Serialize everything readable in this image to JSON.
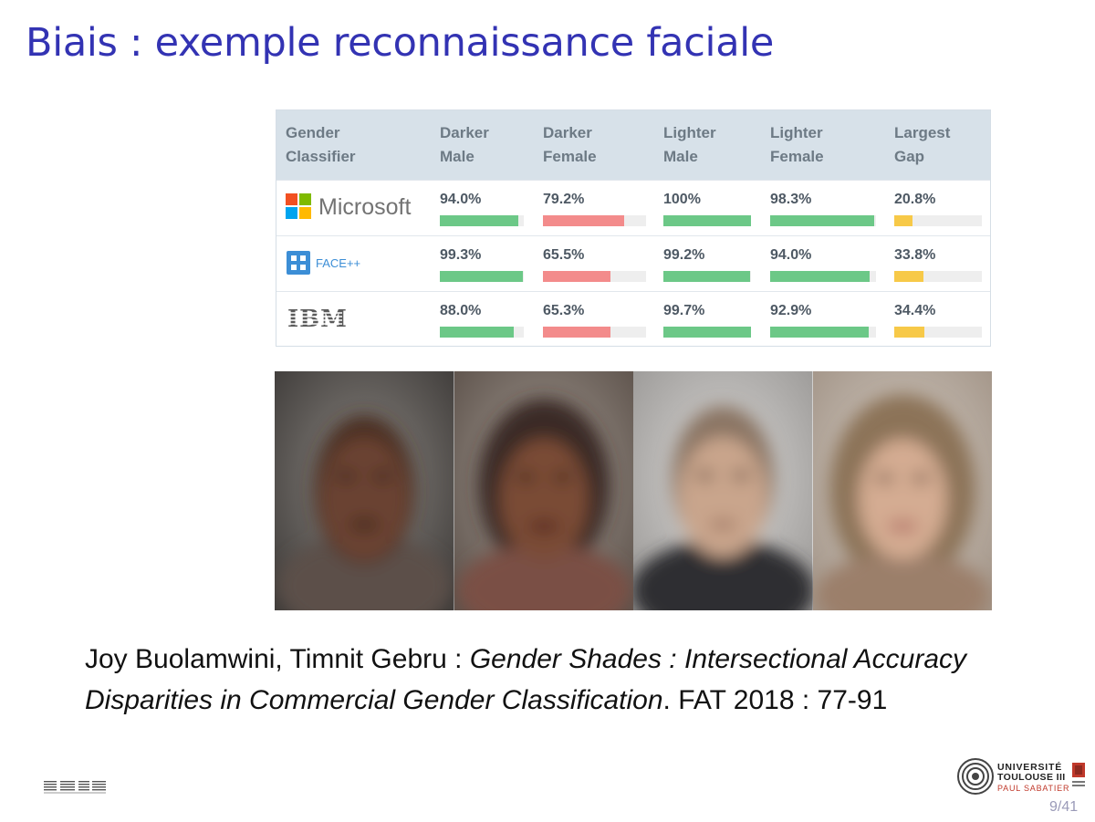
{
  "title": "Biais : exemple reconnaissance faciale",
  "table": {
    "headers": [
      [
        "Gender",
        "Classifier"
      ],
      [
        "Darker",
        "Male"
      ],
      [
        "Darker",
        "Female"
      ],
      [
        "Lighter",
        "Male"
      ],
      [
        "Lighter",
        "Female"
      ],
      [
        "Largest",
        "Gap"
      ]
    ],
    "rows": [
      {
        "logo": "Microsoft",
        "values": [
          "94.0%",
          "79.2%",
          "100%",
          "98.3%",
          "20.8%"
        ],
        "fractions": [
          0.94,
          0.792,
          1.0,
          0.983,
          0.208
        ]
      },
      {
        "logo": "FACE++",
        "values": [
          "99.3%",
          "65.5%",
          "99.2%",
          "94.0%",
          "33.8%"
        ],
        "fractions": [
          0.993,
          0.655,
          0.992,
          0.94,
          0.338
        ]
      },
      {
        "logo": "IBM",
        "values": [
          "88.0%",
          "65.3%",
          "99.7%",
          "92.9%",
          "34.4%"
        ],
        "fractions": [
          0.88,
          0.653,
          0.997,
          0.929,
          0.344
        ]
      }
    ],
    "bar_colors": [
      "#6cc887",
      "#f38b8b",
      "#6cc887",
      "#6cc887",
      "#f7c948"
    ]
  },
  "faces": [
    "darker-male",
    "darker-female",
    "lighter-male",
    "lighter-female"
  ],
  "citation": {
    "authors": "Joy Buolamwini, Timnit Gebru : ",
    "work": "Gender Shades : Intersectional Accuracy Disparities in Commercial Gender Classification",
    "venue": ". FAT 2018 : 77-91"
  },
  "footer": {
    "university_line1": "UNIVERSITÉ",
    "university_line2": "TOULOUSE III",
    "university_line3": "PAUL SABATIER",
    "page": "9/41"
  }
}
